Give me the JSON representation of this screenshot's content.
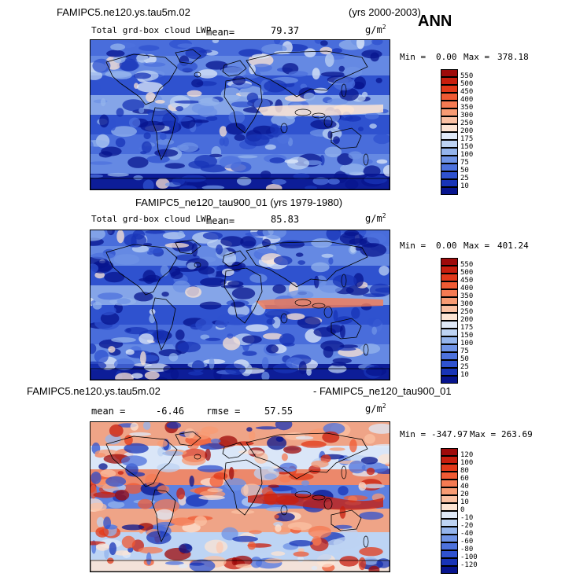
{
  "season": "ANN",
  "panels": [
    {
      "model": "FAMIPC5.ne120.ys.tau5m.02",
      "years": "(yrs 2000-2003)",
      "field": "Total grd-box cloud LWP",
      "mean_label": "mean=",
      "mean_value": "79.37",
      "units_base": "g/m",
      "units_exp": "2",
      "min_label": "Min =",
      "min_value": "0.00",
      "max_label": "Max =",
      "max_value": "378.18",
      "colorbar": {
        "levels": [
          "550",
          "500",
          "450",
          "400",
          "350",
          "300",
          "250",
          "200",
          "175",
          "150",
          "100",
          "75",
          "50",
          "25",
          "10"
        ],
        "colors": [
          "#9e0a0a",
          "#c81e0e",
          "#e2391a",
          "#f05a33",
          "#f57a52",
          "#f89b73",
          "#fbc1a3",
          "#fde4d3",
          "#dfe9f8",
          "#bdd3f3",
          "#94b4ec",
          "#6f93e6",
          "#4d72dd",
          "#2f52cf",
          "#1834b7",
          "#07148e"
        ]
      },
      "map_style": "cloud"
    },
    {
      "model": "FAMIPC5_ne120_tau900_01",
      "years": "(yrs 1979-1980)",
      "field": "Total grd-box cloud LWP",
      "mean_label": "mean=",
      "mean_value": "85.83",
      "units_base": "g/m",
      "units_exp": "2",
      "min_label": "Min =",
      "min_value": "0.00",
      "max_label": "Max =",
      "max_value": "401.24",
      "colorbar": {
        "levels": [
          "550",
          "500",
          "450",
          "400",
          "350",
          "300",
          "250",
          "200",
          "175",
          "150",
          "100",
          "75",
          "50",
          "25",
          "10"
        ],
        "colors": [
          "#9e0a0a",
          "#c81e0e",
          "#e2391a",
          "#f05a33",
          "#f57a52",
          "#f89b73",
          "#fbc1a3",
          "#fde4d3",
          "#dfe9f8",
          "#bdd3f3",
          "#94b4ec",
          "#6f93e6",
          "#4d72dd",
          "#2f52cf",
          "#1834b7",
          "#07148e"
        ]
      },
      "map_style": "cloud"
    },
    {
      "model_a": "FAMIPC5.ne120.ys.tau5m.02",
      "model_b": "- FAMIPC5_ne120_tau900_01",
      "mean_label": "mean =",
      "mean_value": "-6.46",
      "rmse_label": "rmse =",
      "rmse_value": "57.55",
      "units_base": "g/m",
      "units_exp": "2",
      "min_label": "Min =",
      "min_value": "-347.97",
      "max_label": "Max =",
      "max_value": "263.69",
      "colorbar": {
        "levels": [
          "120",
          "100",
          "80",
          "60",
          "40",
          "20",
          "10",
          "0",
          "-10",
          "-20",
          "-40",
          "-60",
          "-80",
          "-100",
          "-120"
        ],
        "colors": [
          "#9e0a0a",
          "#c81e0e",
          "#e2391a",
          "#f05a33",
          "#f57a52",
          "#f89b73",
          "#fbc1a3",
          "#fde4d3",
          "#dfe9f8",
          "#bdd3f3",
          "#94b4ec",
          "#6f93e6",
          "#4d72dd",
          "#2f52cf",
          "#1834b7",
          "#07148e"
        ]
      },
      "map_style": "diff"
    }
  ]
}
